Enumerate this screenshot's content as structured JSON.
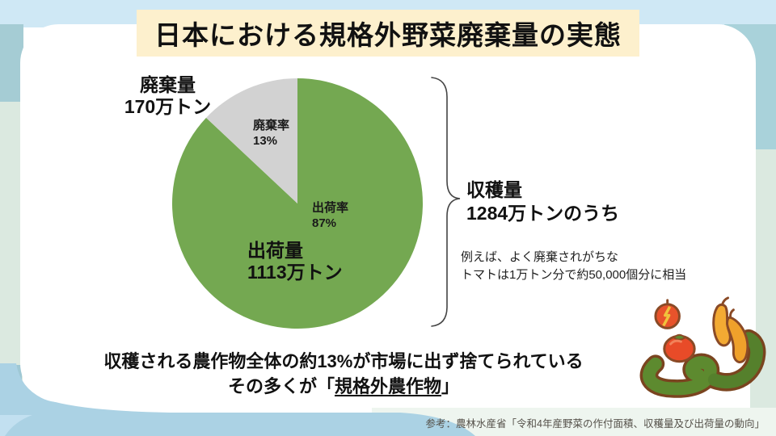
{
  "slide": {
    "title": "日本における規格外野菜廃棄量の実態",
    "source": "参考：農林水産省「令和4年産野菜の作付面積、収穫量及び出荷量の動向」"
  },
  "chart_data": {
    "type": "pie",
    "title": "日本における規格外野菜廃棄量の実態",
    "unit": "万トン",
    "slices": [
      {
        "name": "shipped",
        "rate_label": "出荷率",
        "rate_pct": 87,
        "rate_text": "87%",
        "amount_label": "出荷量",
        "amount_text": "1113万トン",
        "amount_value": 1113,
        "color": "#74a851"
      },
      {
        "name": "waste",
        "rate_label": "廃棄率",
        "rate_pct": 13,
        "rate_text": "13%",
        "amount_label": "廃棄量",
        "amount_text": "170万トン",
        "amount_value": 170,
        "color": "#d2d2d2"
      }
    ],
    "total_label": "収穫量",
    "total_text": "1284万トンのうち",
    "total_value": 1284,
    "start_angle_deg": 0,
    "direction": "clockwise",
    "legend_position": "none",
    "labels_inside": true
  },
  "annotations": {
    "example_line1": "例えば、よく廃棄されがちな",
    "example_line2": "トマトは1万トン分で約50,000個分に相当",
    "conclusion_line1": "収穫される農作物全体の約13%が市場に出ず捨てられている",
    "conclusion_prefix": "その多くが「",
    "conclusion_emphasis": "規格外農作物",
    "conclusion_suffix": "」"
  },
  "colors": {
    "title_highlight": "#fdf0cd",
    "pie_shipped": "#74a851",
    "pie_waste": "#d2d2d2",
    "bg_top_band": "#cfe8f5",
    "bg_teal": "#a5ccd4",
    "bg_mint": "#dbe9e0",
    "bg_bottom_blue": "#abd2e4",
    "bg_bottom_pale": "#eef5ef"
  }
}
